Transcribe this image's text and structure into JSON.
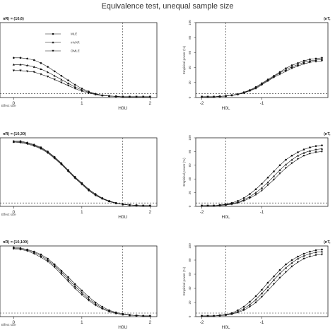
{
  "title": "Equivalence test, unequal sample size",
  "legend": [
    {
      "label": "MLE",
      "marker": "circle"
    },
    {
      "label": "mVAR",
      "marker": "triangle-up"
    },
    {
      "label": "OMLE",
      "marker": "triangle-down"
    }
  ],
  "chart_data": [
    {
      "type": "line",
      "panel_label": "nR) = (10,6)",
      "xlabel": "Effect size",
      "ylabel": "",
      "xlim": [
        -0.2,
        2.1
      ],
      "ylim": [
        0,
        100
      ],
      "x_ticks": [
        "0",
        "1",
        "2"
      ],
      "x_ref": {
        "value": 1.6,
        "label": "H0U"
      },
      "y_ref": 5,
      "x": [
        0,
        0.1,
        0.2,
        0.3,
        0.4,
        0.5,
        0.6,
        0.7,
        0.8,
        0.9,
        1.0,
        1.1,
        1.2,
        1.3,
        1.4,
        1.5,
        1.6,
        1.7,
        1.8,
        1.9,
        2.0
      ],
      "series": [
        {
          "name": "MLE",
          "values": [
            53,
            53,
            52,
            50,
            46,
            41,
            35,
            29,
            23,
            17,
            12,
            8,
            5,
            3,
            2,
            1.5,
            1,
            1,
            1,
            1,
            1
          ]
        },
        {
          "name": "mVAR",
          "values": [
            44,
            44,
            43,
            41,
            38,
            34,
            29,
            24,
            19,
            14,
            10,
            7,
            4.5,
            3,
            2,
            1.5,
            1,
            1,
            1,
            1,
            1
          ]
        },
        {
          "name": "OMLE",
          "values": [
            36,
            36,
            35,
            34,
            31,
            28,
            24,
            20,
            16,
            12,
            8.5,
            6,
            4,
            2.5,
            2,
            1.5,
            1,
            1,
            1,
            1,
            1
          ]
        }
      ]
    },
    {
      "type": "line",
      "panel_label": "(nT,",
      "xlabel": "",
      "ylabel": "Empirical power (%)",
      "xlim": [
        -2.1,
        0.1
      ],
      "ylim": [
        0,
        100
      ],
      "x_ticks": [
        "-2",
        "-1"
      ],
      "y_ticks": [
        "0",
        "20",
        "40",
        "60",
        "80",
        "100"
      ],
      "x_ref": {
        "value": -1.6,
        "label": "H0L"
      },
      "y_ref": 5,
      "x": [
        -2.0,
        -1.9,
        -1.8,
        -1.7,
        -1.6,
        -1.5,
        -1.4,
        -1.3,
        -1.2,
        -1.1,
        -1.0,
        -0.9,
        -0.8,
        -0.7,
        -0.6,
        -0.5,
        -0.4,
        -0.3,
        -0.2,
        -0.1,
        0.0
      ],
      "series": [
        {
          "name": "MLE",
          "values": [
            1,
            1,
            1,
            1.5,
            2,
            3,
            4.5,
            7,
            10,
            14,
            19,
            24,
            29,
            34,
            39,
            43,
            46,
            49,
            51,
            52,
            53
          ]
        },
        {
          "name": "mVAR",
          "values": [
            1,
            1,
            1,
            1.5,
            2,
            3,
            4.5,
            6.5,
            9.5,
            13,
            18,
            23,
            28,
            33,
            37,
            41,
            44,
            47,
            49,
            50,
            51
          ]
        },
        {
          "name": "OMLE",
          "values": [
            1,
            1,
            1,
            1.5,
            2,
            3,
            4,
            6,
            9,
            12,
            17,
            22,
            27,
            31,
            35,
            39,
            42,
            45,
            47,
            48,
            49
          ]
        }
      ]
    },
    {
      "type": "line",
      "panel_label": "nR) = (10,30)",
      "xlabel": "Effect size",
      "ylabel": "",
      "xlim": [
        -0.2,
        2.1
      ],
      "ylim": [
        0,
        100
      ],
      "x_ticks": [
        "0",
        "1",
        "2"
      ],
      "x_ref": {
        "value": 1.6,
        "label": "H0U"
      },
      "y_ref": 5,
      "x": [
        0,
        0.1,
        0.2,
        0.3,
        0.4,
        0.5,
        0.6,
        0.7,
        0.8,
        0.9,
        1.0,
        1.1,
        1.2,
        1.3,
        1.4,
        1.5,
        1.6,
        1.7,
        1.8,
        1.9,
        2.0
      ],
      "series": [
        {
          "name": "MLE",
          "values": [
            95,
            95,
            93,
            90,
            86,
            80,
            72,
            63,
            53,
            43,
            34,
            25,
            18,
            12,
            8,
            5,
            3,
            2,
            1.5,
            1,
            1
          ]
        },
        {
          "name": "mVAR",
          "values": [
            94,
            94,
            92,
            89,
            85,
            79,
            71,
            62,
            52,
            42,
            33,
            24,
            17,
            11.5,
            7.5,
            4.5,
            3,
            2,
            1.5,
            1,
            1
          ]
        },
        {
          "name": "OMLE",
          "values": [
            94,
            93,
            91,
            88,
            84,
            78,
            70,
            61,
            51,
            41,
            32,
            23,
            16,
            11,
            7,
            4.5,
            3,
            2,
            1.5,
            1,
            1
          ]
        }
      ]
    },
    {
      "type": "line",
      "panel_label": "(nT,",
      "xlabel": "",
      "ylabel": "Empirical power (%)",
      "xlim": [
        -2.1,
        0.1
      ],
      "ylim": [
        0,
        100
      ],
      "x_ticks": [
        "-2",
        "-1"
      ],
      "y_ticks": [
        "0",
        "20",
        "40",
        "60",
        "80",
        "100"
      ],
      "x_ref": {
        "value": -1.6,
        "label": "H0L"
      },
      "y_ref": 5,
      "x": [
        -2.0,
        -1.9,
        -1.8,
        -1.7,
        -1.6,
        -1.5,
        -1.4,
        -1.3,
        -1.2,
        -1.1,
        -1.0,
        -0.9,
        -0.8,
        -0.7,
        -0.6,
        -0.5,
        -0.4,
        -0.3,
        -0.2,
        -0.1,
        0.0
      ],
      "series": [
        {
          "name": "MLE",
          "values": [
            1,
            1,
            1,
            2,
            3,
            5,
            8,
            12,
            18,
            25,
            33,
            42,
            51,
            60,
            68,
            74,
            79,
            83,
            86,
            88,
            89
          ]
        },
        {
          "name": "mVAR",
          "values": [
            1,
            1,
            1,
            1.5,
            2.5,
            4,
            6,
            9.5,
            14,
            20,
            27,
            35,
            44,
            53,
            61,
            68,
            74,
            78,
            81,
            83,
            84
          ]
        },
        {
          "name": "OMLE",
          "values": [
            1,
            1,
            1,
            1.5,
            2,
            3,
            5,
            8,
            12,
            17,
            23,
            31,
            39,
            48,
            56,
            63,
            69,
            74,
            77,
            79,
            80
          ]
        }
      ]
    },
    {
      "type": "line",
      "panel_label": "nR) = (10,100)",
      "xlabel": "Effect size",
      "ylabel": "",
      "xlim": [
        -0.2,
        2.1
      ],
      "ylim": [
        0,
        100
      ],
      "x_ticks": [
        "0",
        "1",
        "2"
      ],
      "x_ref": {
        "value": 1.6,
        "label": "H0U"
      },
      "y_ref": 5,
      "x": [
        0,
        0.1,
        0.2,
        0.3,
        0.4,
        0.5,
        0.6,
        0.7,
        0.8,
        0.9,
        1.0,
        1.1,
        1.2,
        1.3,
        1.4,
        1.5,
        1.6,
        1.7,
        1.8,
        1.9,
        2.0
      ],
      "series": [
        {
          "name": "MLE",
          "values": [
            98,
            97,
            95,
            92,
            88,
            82,
            74,
            65,
            56,
            46,
            37,
            28,
            20,
            14,
            9,
            6,
            4,
            2.5,
            1.5,
            1,
            1
          ]
        },
        {
          "name": "mVAR",
          "values": [
            97,
            96,
            94,
            91,
            86,
            80,
            72,
            63,
            53,
            43,
            34,
            25,
            18,
            12,
            8,
            5,
            3,
            2,
            1.5,
            1,
            1
          ]
        },
        {
          "name": "OMLE",
          "values": [
            96,
            95,
            93,
            89,
            84,
            78,
            70,
            60,
            50,
            40,
            31,
            23,
            16,
            11,
            7,
            4.5,
            3,
            2,
            1.5,
            1,
            1
          ]
        }
      ]
    },
    {
      "type": "line",
      "panel_label": "(nT,",
      "xlabel": "",
      "ylabel": "Empirical power (%)",
      "xlim": [
        -2.1,
        0.1
      ],
      "ylim": [
        0,
        100
      ],
      "x_ticks": [
        "-2",
        "-1"
      ],
      "y_ticks": [
        "0",
        "20",
        "40",
        "60",
        "80",
        "100"
      ],
      "x_ref": {
        "value": -1.6,
        "label": "H0L"
      },
      "y_ref": 5,
      "x": [
        -2.0,
        -1.9,
        -1.8,
        -1.7,
        -1.6,
        -1.5,
        -1.4,
        -1.3,
        -1.2,
        -1.1,
        -1.0,
        -0.9,
        -0.8,
        -0.7,
        -0.6,
        -0.5,
        -0.4,
        -0.3,
        -0.2,
        -0.1,
        0.0
      ],
      "series": [
        {
          "name": "MLE",
          "values": [
            1,
            1,
            1,
            2,
            3,
            5,
            9,
            14,
            21,
            29,
            38,
            48,
            57,
            66,
            74,
            80,
            85,
            89,
            92,
            94,
            95
          ]
        },
        {
          "name": "mVAR",
          "values": [
            1,
            1,
            1,
            1.5,
            2.5,
            4,
            7,
            11,
            17,
            24,
            33,
            42,
            52,
            61,
            69,
            76,
            82,
            86,
            89,
            91,
            92
          ]
        },
        {
          "name": "OMLE",
          "values": [
            1,
            1,
            1,
            1.5,
            2,
            3.5,
            6,
            9,
            14,
            20,
            28,
            37,
            46,
            55,
            63,
            71,
            77,
            82,
            85,
            87,
            88
          ]
        }
      ]
    }
  ]
}
